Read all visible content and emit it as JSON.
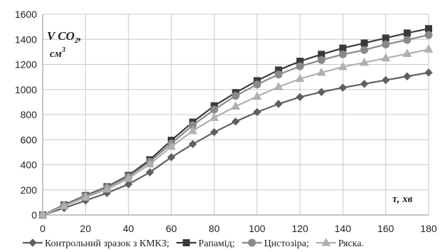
{
  "chart_data": {
    "type": "line",
    "ylabel_main": "V CO",
    "ylabel_sub": "2",
    "ylabel_trail": ",",
    "ylabel_unit": "см",
    "ylabel_unit_sup": "3",
    "xlabel": "τ, хв",
    "xlim": [
      0,
      180
    ],
    "ylim": [
      0,
      1600
    ],
    "x": [
      0,
      10,
      20,
      30,
      40,
      50,
      60,
      70,
      80,
      90,
      100,
      110,
      120,
      130,
      140,
      150,
      160,
      170,
      180
    ],
    "xticks": [
      0,
      20,
      40,
      60,
      80,
      100,
      120,
      140,
      160,
      180
    ],
    "yticks": [
      0,
      200,
      400,
      600,
      800,
      1000,
      1200,
      1400,
      1600
    ],
    "grid": true,
    "legend_position": "bottom",
    "series": [
      {
        "name": "Контрольний зразок з КМКЗ;",
        "marker": "diamond",
        "color": "#606060",
        "values": [
          0,
          55,
          115,
          175,
          245,
          340,
          460,
          565,
          660,
          745,
          820,
          885,
          940,
          980,
          1015,
          1045,
          1075,
          1105,
          1135
        ]
      },
      {
        "name": "Рапамід;",
        "marker": "square",
        "color": "#3a3a3a",
        "values": [
          0,
          80,
          155,
          225,
          315,
          440,
          595,
          740,
          870,
          975,
          1070,
          1155,
          1225,
          1280,
          1330,
          1370,
          1410,
          1450,
          1485
        ]
      },
      {
        "name": "Цистозіра;",
        "marker": "circle",
        "color": "#8a8a8a",
        "values": [
          0,
          75,
          150,
          220,
          305,
          425,
          570,
          715,
          840,
          950,
          1040,
          1120,
          1185,
          1235,
          1280,
          1315,
          1360,
          1395,
          1435
        ]
      },
      {
        "name": "Ряска.",
        "marker": "triangle",
        "color": "#b0b0b0",
        "values": [
          0,
          70,
          140,
          205,
          290,
          405,
          545,
          670,
          775,
          865,
          945,
          1020,
          1085,
          1135,
          1180,
          1215,
          1250,
          1285,
          1320
        ]
      }
    ]
  }
}
